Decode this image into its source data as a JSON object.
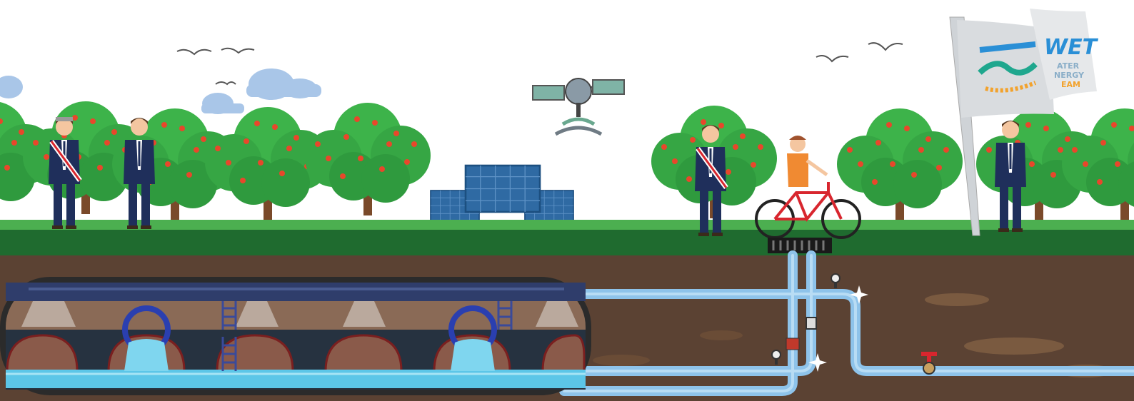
{
  "flag": {
    "logo_main": "WET",
    "logo_line1": "ATER",
    "logo_line2": "NERGY",
    "logo_line3": "EAM"
  },
  "colors": {
    "sky": "#ffffff",
    "cloud": "#a9c6e8",
    "tree_foliage": "#3db34a",
    "fruit": "#e8472b",
    "grass": "#1f6b2f",
    "soil": "#5b4233",
    "pipe": "#8ec3ea",
    "water": "#5cc6e8",
    "suit": "#1f2f5b",
    "bicycle": "#d8262e",
    "solar_panel": "#2f6aa3",
    "flag": "#d9dcdf",
    "logo_blue": "#2a8fd6",
    "logo_teal": "#1fa78e",
    "logo_orange": "#f2a22c"
  },
  "icons": [
    "bird-icon",
    "cloud-icon",
    "satellite-icon",
    "solar-panel-icon",
    "tree-icon",
    "person-icon",
    "bicycle-icon",
    "flag-icon",
    "valve-icon",
    "pressure-gauge-icon",
    "drain-grate-icon",
    "pipe-icon",
    "water-tunnel-icon"
  ]
}
